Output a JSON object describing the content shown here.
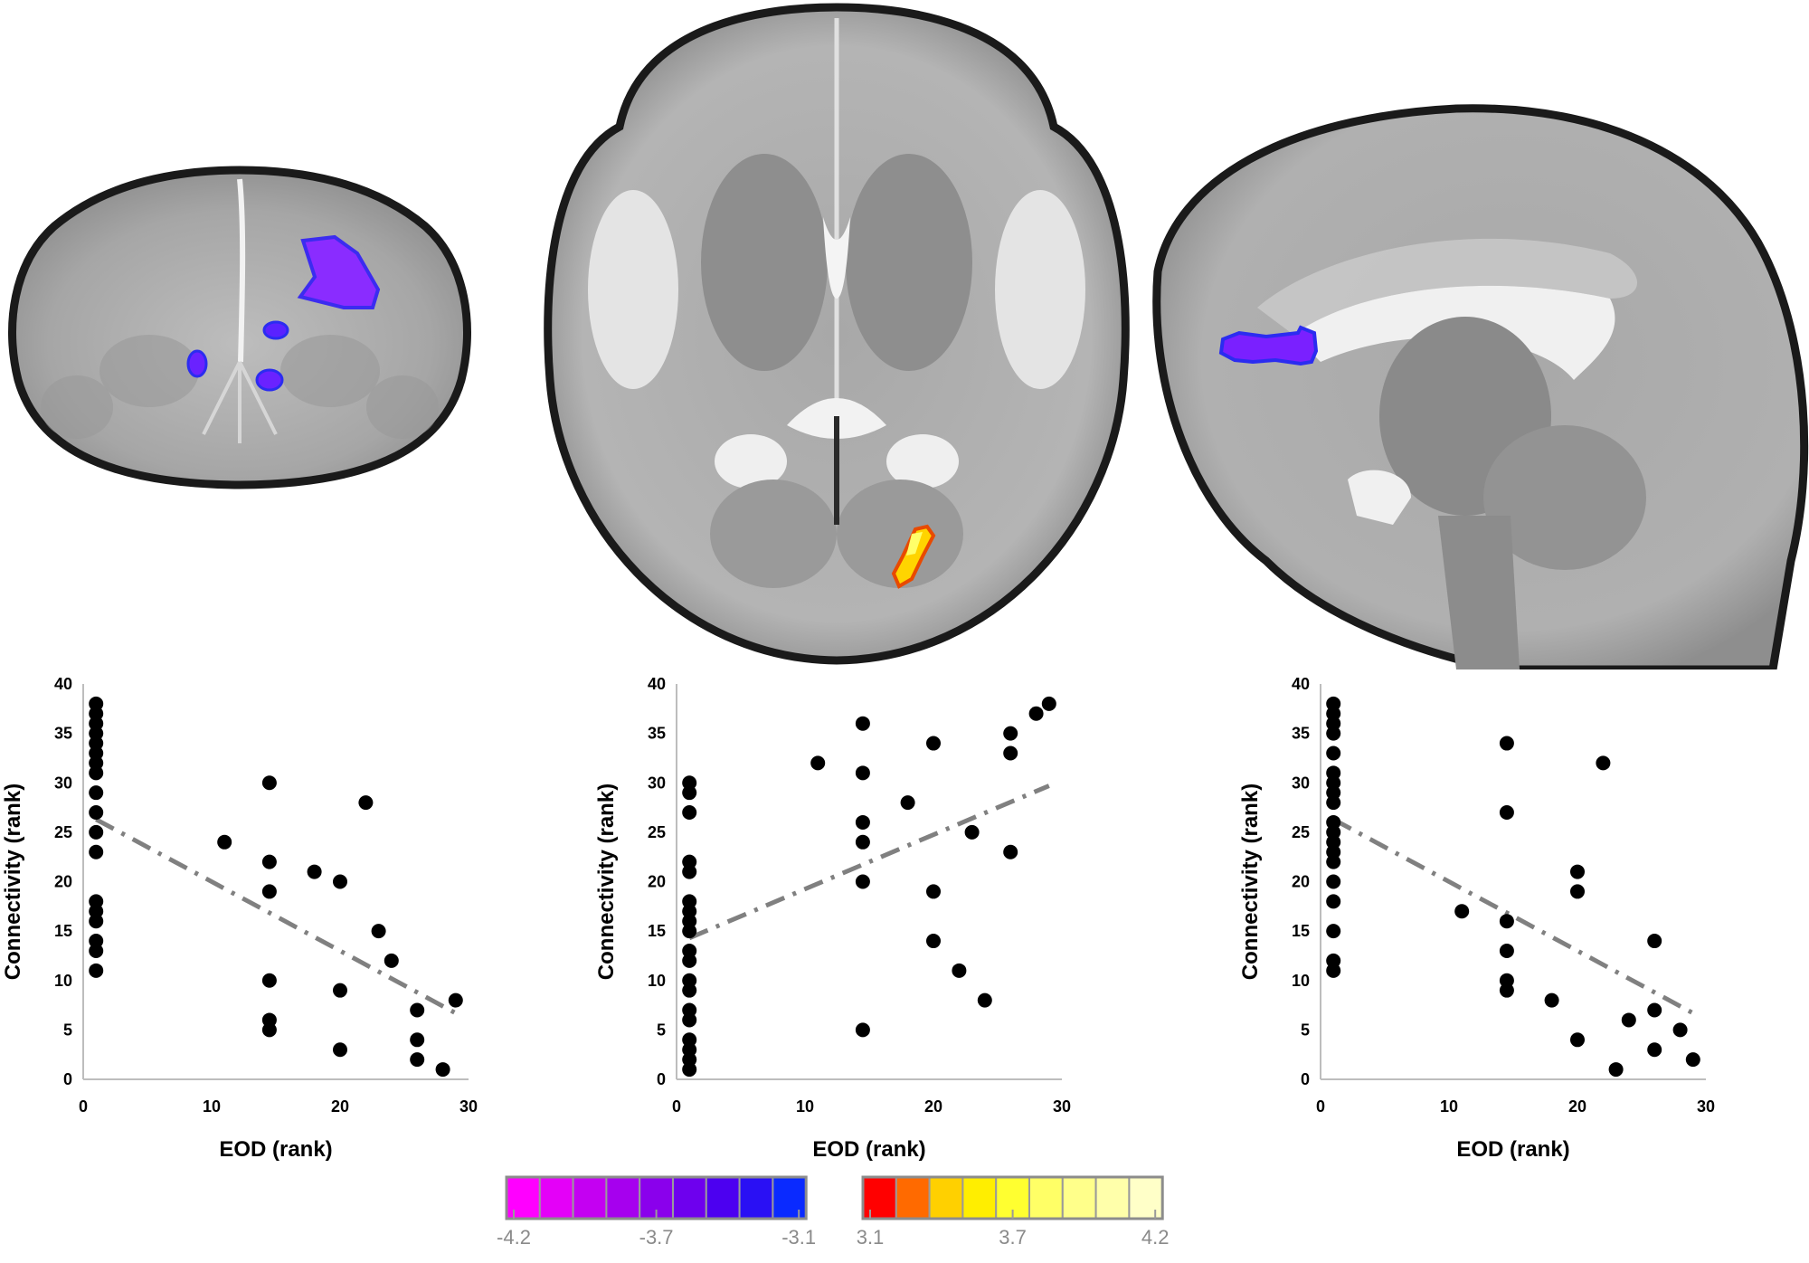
{
  "chart_data": [
    {
      "type": "scatter",
      "xlabel": "EOD (rank)",
      "ylabel": "Connectivity (rank)",
      "xlim": [
        0,
        30
      ],
      "ylim": [
        0,
        40
      ],
      "xticks": [
        "0",
        "10",
        "20",
        "30"
      ],
      "yticks": [
        "0",
        "5",
        "10",
        "15",
        "20",
        "25",
        "30",
        "35",
        "40"
      ],
      "points": [
        [
          1,
          38
        ],
        [
          1,
          37
        ],
        [
          1,
          36
        ],
        [
          1,
          35
        ],
        [
          1,
          34
        ],
        [
          1,
          33
        ],
        [
          1,
          32
        ],
        [
          1,
          31
        ],
        [
          1,
          29
        ],
        [
          1,
          27
        ],
        [
          1,
          25
        ],
        [
          1,
          23
        ],
        [
          1,
          18
        ],
        [
          1,
          17
        ],
        [
          1,
          16
        ],
        [
          1,
          14
        ],
        [
          1,
          13
        ],
        [
          1,
          11
        ],
        [
          11,
          24
        ],
        [
          14.5,
          30
        ],
        [
          14.5,
          22
        ],
        [
          14.5,
          19
        ],
        [
          14.5,
          10
        ],
        [
          14.5,
          6
        ],
        [
          14.5,
          5
        ],
        [
          18,
          21
        ],
        [
          20,
          20
        ],
        [
          20,
          9
        ],
        [
          20,
          3
        ],
        [
          22,
          28
        ],
        [
          23,
          15
        ],
        [
          24,
          12
        ],
        [
          26,
          7
        ],
        [
          26,
          4
        ],
        [
          26,
          2
        ],
        [
          28,
          1
        ],
        [
          29,
          8
        ]
      ],
      "trend": {
        "x": [
          1,
          29
        ],
        "y": [
          26.3,
          6.7
        ],
        "style": "dash-dot"
      }
    },
    {
      "type": "scatter",
      "xlabel": "EOD (rank)",
      "ylabel": "Connectivity (rank)",
      "xlim": [
        0,
        30
      ],
      "ylim": [
        0,
        40
      ],
      "xticks": [
        "0",
        "10",
        "20",
        "30"
      ],
      "yticks": [
        "0",
        "5",
        "10",
        "15",
        "20",
        "25",
        "30",
        "35",
        "40"
      ],
      "points": [
        [
          1,
          30
        ],
        [
          1,
          29
        ],
        [
          1,
          27
        ],
        [
          1,
          22
        ],
        [
          1,
          21
        ],
        [
          1,
          18
        ],
        [
          1,
          17
        ],
        [
          1,
          16
        ],
        [
          1,
          15
        ],
        [
          1,
          13
        ],
        [
          1,
          12
        ],
        [
          1,
          10
        ],
        [
          1,
          9
        ],
        [
          1,
          7
        ],
        [
          1,
          6
        ],
        [
          1,
          4
        ],
        [
          1,
          3
        ],
        [
          1,
          2
        ],
        [
          1,
          1
        ],
        [
          11,
          32
        ],
        [
          14.5,
          36
        ],
        [
          14.5,
          31
        ],
        [
          14.5,
          26
        ],
        [
          14.5,
          24
        ],
        [
          14.5,
          20
        ],
        [
          14.5,
          5
        ],
        [
          18,
          28
        ],
        [
          20,
          34
        ],
        [
          20,
          19
        ],
        [
          20,
          14
        ],
        [
          22,
          11
        ],
        [
          23,
          25
        ],
        [
          24,
          8
        ],
        [
          26,
          35
        ],
        [
          26,
          33
        ],
        [
          26,
          23
        ],
        [
          28,
          37
        ],
        [
          29,
          38
        ]
      ],
      "trend": {
        "x": [
          1,
          29
        ],
        "y": [
          14.3,
          29.7
        ],
        "style": "dash-dot"
      }
    },
    {
      "type": "scatter",
      "xlabel": "EOD (rank)",
      "ylabel": "Connectivity (rank)",
      "xlim": [
        0,
        30
      ],
      "ylim": [
        0,
        40
      ],
      "xticks": [
        "0",
        "10",
        "20",
        "30"
      ],
      "yticks": [
        "0",
        "5",
        "10",
        "15",
        "20",
        "25",
        "30",
        "35",
        "40"
      ],
      "points": [
        [
          1,
          38
        ],
        [
          1,
          37
        ],
        [
          1,
          36
        ],
        [
          1,
          35
        ],
        [
          1,
          33
        ],
        [
          1,
          31
        ],
        [
          1,
          30
        ],
        [
          1,
          29
        ],
        [
          1,
          28
        ],
        [
          1,
          26
        ],
        [
          1,
          25
        ],
        [
          1,
          24
        ],
        [
          1,
          23
        ],
        [
          1,
          22
        ],
        [
          1,
          20
        ],
        [
          1,
          18
        ],
        [
          1,
          15
        ],
        [
          1,
          12
        ],
        [
          1,
          11
        ],
        [
          11,
          17
        ],
        [
          14.5,
          34
        ],
        [
          14.5,
          27
        ],
        [
          14.5,
          16
        ],
        [
          14.5,
          13
        ],
        [
          14.5,
          10
        ],
        [
          14.5,
          9
        ],
        [
          18,
          8
        ],
        [
          20,
          21
        ],
        [
          20,
          19
        ],
        [
          20,
          4
        ],
        [
          22,
          32
        ],
        [
          23,
          1
        ],
        [
          24,
          6
        ],
        [
          26,
          14
        ],
        [
          26,
          7
        ],
        [
          26,
          3
        ],
        [
          28,
          5
        ],
        [
          29,
          2
        ]
      ],
      "trend": {
        "x": [
          1,
          29
        ],
        "y": [
          26.3,
          6.7
        ],
        "style": "dash-dot"
      }
    }
  ],
  "colorbar": {
    "negative": {
      "colors": [
        "#ff00ff",
        "#e400f8",
        "#c400f2",
        "#a600ee",
        "#8a00ec",
        "#6e00ee",
        "#4c00f0",
        "#2a10f4",
        "#0a2aff"
      ],
      "labels": [
        "-4.2",
        "-3.7",
        "-3.1"
      ]
    },
    "positive": {
      "colors": [
        "#ff0000",
        "#ff6a00",
        "#ffd000",
        "#ffee00",
        "#ffff30",
        "#ffff66",
        "#ffff8a",
        "#ffffaa",
        "#ffffc8"
      ],
      "labels": [
        "3.1",
        "3.7",
        "4.2"
      ]
    }
  }
}
